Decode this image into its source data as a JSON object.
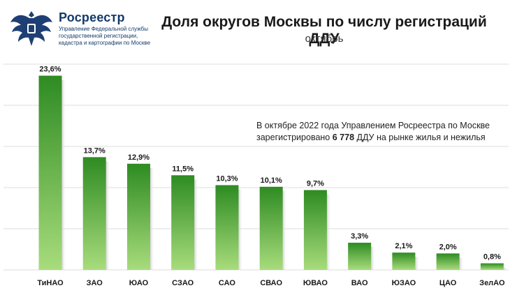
{
  "header": {
    "logo_title": "Росреестр",
    "logo_subtitle_lines": [
      "Управление Федеральной службы",
      "государственной регистрации,",
      "кадастра и картографии по Москве"
    ],
    "title": "Доля округов Москвы по числу регистраций ДДУ",
    "subtitle": "октябрь"
  },
  "note": {
    "line1": "В октябре 2022 года Управлением Росреестра по Москве",
    "line2_prefix": "зарегистрировано ",
    "line2_value": "6 778",
    "line2_suffix": " ДДУ на рынке жилья и нежилья"
  },
  "chart_data": {
    "type": "bar",
    "categories": [
      "ТиНАО",
      "ЗАО",
      "ЮАО",
      "СЗАО",
      "САО",
      "СВАО",
      "ЮВАО",
      "ВАО",
      "ЮЗАО",
      "ЦАО",
      "ЗелАО"
    ],
    "values": [
      23.6,
      13.7,
      12.9,
      11.5,
      10.3,
      10.1,
      9.7,
      3.3,
      2.1,
      2.0,
      0.8
    ],
    "value_labels": [
      "23,6%",
      "13,7%",
      "12,9%",
      "11,5%",
      "10,3%",
      "10,1%",
      "9,7%",
      "3,3%",
      "2,1%",
      "2,0%",
      "0,8%"
    ],
    "ylim": [
      0,
      25
    ],
    "grid": true,
    "colors": {
      "bar_top": "#2e8b22",
      "bar_bottom": "#a8dc7c",
      "grid": "#dddddd",
      "shadow": "#cfcfcf"
    }
  }
}
